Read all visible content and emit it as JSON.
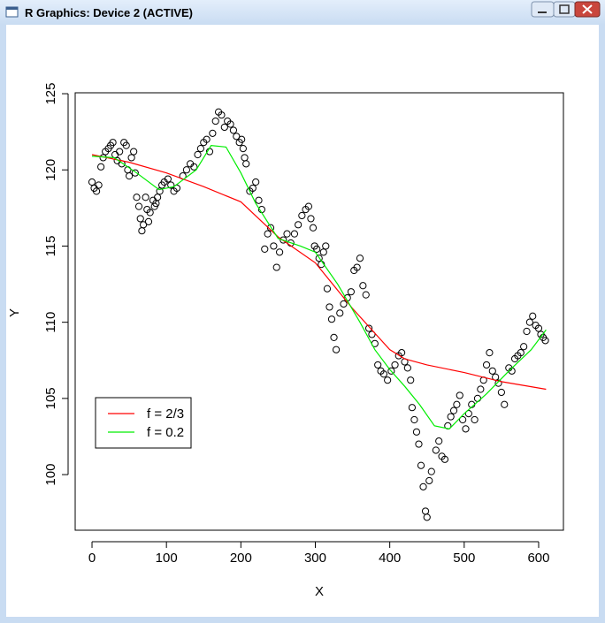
{
  "window": {
    "title": "R Graphics: Device 2 (ACTIVE)"
  },
  "chart_data": {
    "type": "scatter",
    "x_label": "X",
    "y_label": "Y",
    "xlim": [
      -22.6,
      633.3
    ],
    "ylim": [
      96.35,
      125.06
    ],
    "xticks": [
      0,
      100,
      200,
      300,
      400,
      500,
      600
    ],
    "yticks": [
      100,
      105,
      110,
      115,
      120,
      125
    ],
    "legend_position": "bottomleft",
    "points": {
      "color": "#000000",
      "x": [
        0,
        3,
        6,
        9,
        12,
        15,
        18,
        22,
        25,
        28,
        31,
        34,
        37,
        40,
        43,
        46,
        48,
        50,
        53,
        56,
        58,
        60,
        63,
        65,
        67,
        69,
        72,
        74,
        76,
        78,
        82,
        84,
        86,
        88,
        91,
        94,
        97,
        102,
        106,
        110,
        114,
        122,
        127,
        132,
        137,
        142,
        146,
        150,
        154,
        158,
        162,
        166,
        170,
        174,
        178,
        182,
        186,
        190,
        194,
        198,
        201,
        203,
        205,
        207,
        212,
        216,
        220,
        224,
        228,
        232,
        236,
        240,
        244,
        248,
        252,
        257,
        262,
        267,
        272,
        277,
        282,
        287,
        291,
        294,
        297,
        299,
        302,
        305,
        308,
        311,
        314,
        316,
        319,
        322,
        325,
        328,
        333,
        338,
        343,
        348,
        352,
        356,
        360,
        364,
        368,
        372,
        376,
        380,
        384,
        388,
        392,
        397,
        402,
        407,
        412,
        416,
        420,
        424,
        428,
        430,
        433,
        436,
        439,
        442,
        445,
        448,
        450,
        453,
        456,
        462,
        466,
        470,
        474,
        478,
        482,
        486,
        490,
        494,
        498,
        502,
        506,
        510,
        514,
        518,
        522,
        526,
        530,
        534,
        538,
        542,
        546,
        550,
        554,
        560,
        564,
        568,
        572,
        576,
        580,
        584,
        588,
        592,
        596,
        600,
        603,
        606,
        609
      ],
      "y": [
        119.2,
        118.8,
        118.6,
        119.0,
        120.2,
        120.8,
        121.2,
        121.4,
        121.6,
        121.8,
        121.0,
        120.6,
        121.2,
        120.4,
        121.8,
        121.6,
        120.0,
        119.6,
        120.8,
        121.2,
        119.8,
        118.2,
        117.6,
        116.8,
        116.0,
        116.4,
        118.2,
        117.4,
        116.6,
        117.2,
        118.0,
        117.6,
        117.8,
        118.2,
        118.6,
        119.0,
        119.2,
        119.4,
        119.0,
        118.6,
        118.8,
        119.6,
        120.0,
        120.4,
        120.2,
        121.0,
        121.4,
        121.8,
        122.0,
        121.2,
        122.4,
        123.2,
        123.8,
        123.6,
        122.8,
        123.2,
        123.0,
        122.6,
        122.2,
        121.8,
        122.0,
        121.4,
        120.8,
        120.4,
        118.6,
        118.8,
        119.2,
        118.0,
        117.4,
        114.8,
        115.8,
        116.2,
        115.0,
        113.6,
        114.6,
        115.4,
        115.8,
        115.2,
        115.8,
        116.4,
        117.0,
        117.4,
        117.6,
        116.8,
        116.2,
        115.0,
        114.8,
        114.2,
        113.8,
        114.6,
        115.0,
        112.2,
        111.0,
        110.2,
        109.0,
        108.2,
        110.6,
        111.2,
        111.6,
        112.0,
        113.4,
        113.6,
        114.2,
        112.4,
        111.8,
        109.6,
        109.2,
        108.6,
        107.2,
        106.8,
        106.6,
        106.2,
        106.8,
        107.2,
        107.8,
        108.0,
        107.4,
        107.0,
        106.2,
        104.4,
        103.6,
        102.8,
        102.0,
        100.6,
        99.2,
        97.6,
        97.2,
        99.6,
        100.2,
        101.6,
        102.2,
        101.2,
        101.0,
        103.2,
        103.8,
        104.2,
        104.6,
        105.2,
        103.6,
        103.0,
        104.0,
        104.6,
        103.6,
        105.0,
        105.6,
        106.2,
        107.2,
        108.0,
        106.8,
        106.4,
        106.0,
        105.4,
        104.6,
        107.0,
        106.8,
        107.6,
        107.8,
        108.0,
        108.4,
        109.4,
        110.0,
        110.4,
        109.8,
        109.6,
        109.2,
        109.0,
        108.8
      ]
    },
    "lines": [
      {
        "name": "f = 2/3",
        "color": "#ff0000",
        "x": [
          0,
          50,
          100,
          150,
          200,
          250,
          300,
          350,
          400,
          420,
          450,
          500,
          550,
          610
        ],
        "y": [
          121.0,
          120.5,
          119.8,
          118.9,
          117.9,
          115.6,
          113.9,
          110.9,
          108.2,
          107.6,
          107.2,
          106.7,
          106.1,
          105.6
        ]
      },
      {
        "name": "f = 0.2",
        "color": "#00ee00",
        "x": [
          0,
          30,
          60,
          90,
          110,
          140,
          160,
          180,
          200,
          220,
          250,
          280,
          300,
          330,
          360,
          380,
          400,
          420,
          440,
          460,
          480,
          500,
          530,
          560,
          590,
          610
        ],
        "y": [
          120.9,
          120.8,
          119.8,
          118.7,
          118.9,
          120.0,
          121.6,
          121.5,
          119.8,
          117.8,
          115.5,
          115.0,
          114.6,
          112.5,
          110.0,
          108.2,
          106.9,
          105.8,
          104.6,
          103.2,
          103.0,
          104.0,
          105.3,
          106.8,
          108.2,
          109.5
        ]
      }
    ]
  }
}
